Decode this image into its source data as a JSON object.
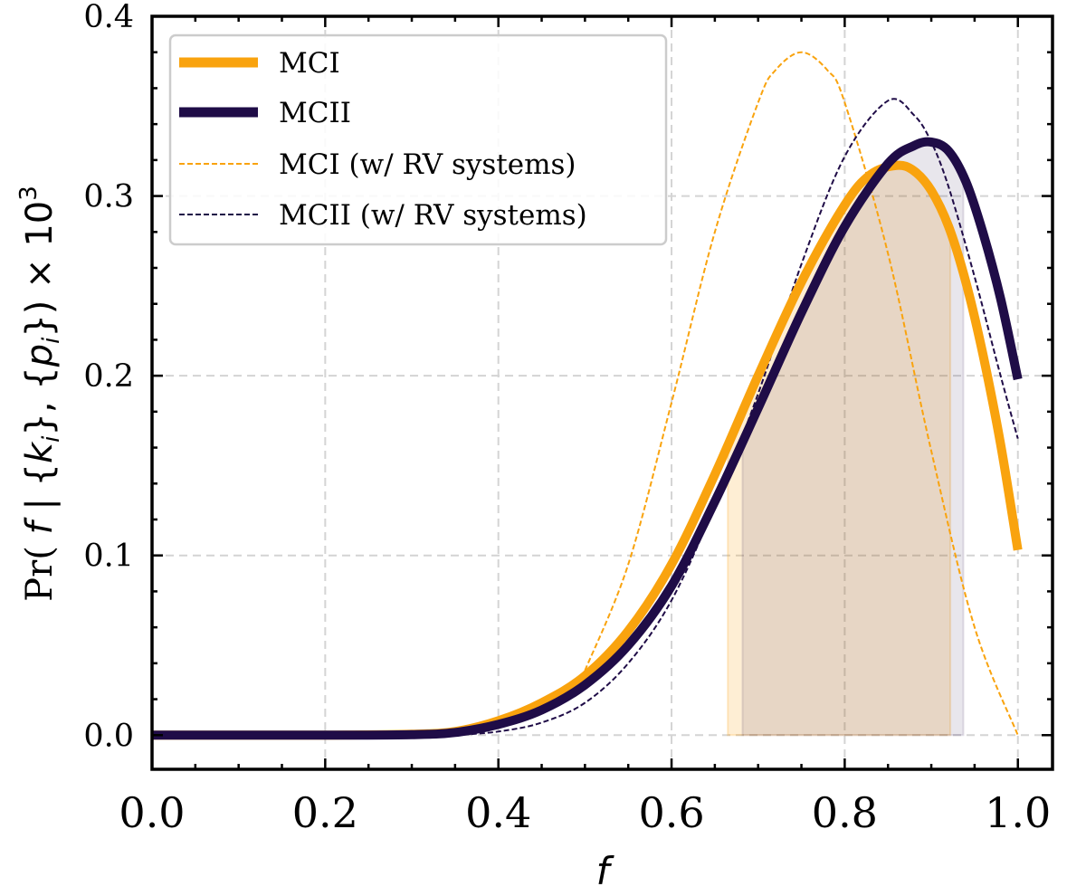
{
  "chart_data": {
    "type": "line",
    "xlabel": "f",
    "ylabel": "Pr( f | {k_i}, {p_i}) × 10^3",
    "ylabel_parts": {
      "pre": "Pr( ",
      "f": "f",
      "bar": " | {",
      "k": "k",
      "ki_close": "}, {",
      "p": "p",
      "pi_close": "})  × 10",
      "sub": "i",
      "exp": "3"
    },
    "xlim": [
      0.0,
      1.04
    ],
    "ylim": [
      -0.019,
      0.4
    ],
    "xticks": [
      "0.0",
      "0.2",
      "0.4",
      "0.6",
      "0.8",
      "1.0"
    ],
    "yticks": [
      "0.0",
      "0.1",
      "0.2",
      "0.3",
      "0.4"
    ],
    "grid": true,
    "legend_position": "top-left",
    "colors": {
      "mci": "#f9a30e",
      "mcii": "#1f0c47"
    },
    "series": [
      {
        "name": "MCI",
        "style": "solid-thick",
        "color": "#f9a30e",
        "x": [
          0.0,
          0.1,
          0.2,
          0.3,
          0.35,
          0.4,
          0.45,
          0.5,
          0.55,
          0.6,
          0.65,
          0.7,
          0.75,
          0.8,
          0.83,
          0.86,
          0.88,
          0.9,
          0.92,
          0.94,
          0.96,
          0.98,
          1.0
        ],
        "y": [
          0.0,
          0.0,
          0.0,
          0.0005,
          0.002,
          0.008,
          0.018,
          0.033,
          0.058,
          0.095,
          0.145,
          0.2,
          0.252,
          0.295,
          0.312,
          0.317,
          0.314,
          0.303,
          0.283,
          0.252,
          0.211,
          0.162,
          0.103
        ]
      },
      {
        "name": "MCII",
        "style": "solid-thick",
        "color": "#1f0c47",
        "x": [
          0.0,
          0.1,
          0.2,
          0.3,
          0.35,
          0.4,
          0.45,
          0.5,
          0.55,
          0.6,
          0.65,
          0.7,
          0.75,
          0.8,
          0.85,
          0.88,
          0.9,
          0.92,
          0.94,
          0.96,
          0.98,
          1.0
        ],
        "y": [
          0.0,
          0.0,
          0.0,
          0.0003,
          0.0015,
          0.006,
          0.014,
          0.028,
          0.05,
          0.083,
          0.13,
          0.182,
          0.235,
          0.283,
          0.318,
          0.328,
          0.33,
          0.325,
          0.308,
          0.279,
          0.243,
          0.198
        ]
      },
      {
        "name": "MCI (w/ RV systems)",
        "style": "dashed-thin",
        "color": "#f9a30e",
        "x": [
          0.5,
          0.55,
          0.6,
          0.65,
          0.7,
          0.72,
          0.75,
          0.78,
          0.8,
          0.85,
          0.9,
          0.95,
          1.0
        ],
        "y": [
          0.036,
          0.095,
          0.185,
          0.28,
          0.352,
          0.37,
          0.38,
          0.37,
          0.352,
          0.268,
          0.158,
          0.06,
          0.0
        ]
      },
      {
        "name": "MCII (w/ RV systems)",
        "style": "dashed-thin",
        "color": "#1f0c47",
        "x": [
          0.35,
          0.4,
          0.45,
          0.5,
          0.55,
          0.6,
          0.65,
          0.7,
          0.75,
          0.8,
          0.85,
          0.88,
          0.9,
          0.92,
          0.95,
          0.98,
          1.0
        ],
        "y": [
          0.0,
          0.002,
          0.007,
          0.018,
          0.04,
          0.075,
          0.128,
          0.19,
          0.262,
          0.322,
          0.353,
          0.345,
          0.33,
          0.305,
          0.255,
          0.2,
          0.165
        ]
      }
    ],
    "shaded_regions": [
      {
        "series": "MCI",
        "x_start": 0.665,
        "x_end": 0.922,
        "color": "#f9a30e",
        "opacity": 0.18
      },
      {
        "series": "MCII",
        "x_start": 0.682,
        "x_end": 0.937,
        "color": "#1f0c47",
        "opacity": 0.1
      }
    ]
  }
}
